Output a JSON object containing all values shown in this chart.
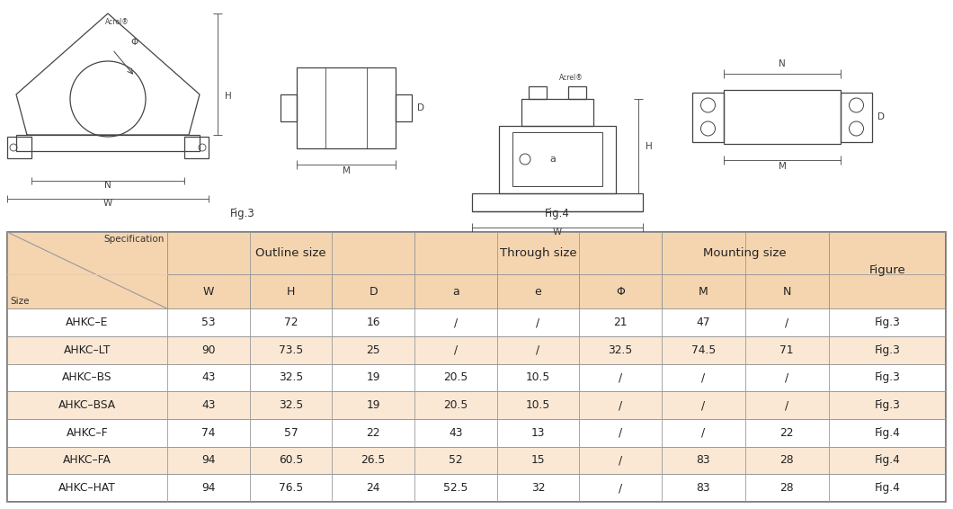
{
  "fig_width": 10.6,
  "fig_height": 5.66,
  "bg_color": "#ffffff",
  "table_header_bg": "#f5d5b0",
  "table_row_odd_bg": "#ffffff",
  "table_row_even_bg": "#fae8d5",
  "table_border_color": "#999999",
  "text_color": "#333333",
  "sub_headers": [
    "W",
    "H",
    "D",
    "a",
    "e",
    "Φ",
    "M",
    "N"
  ],
  "rows": [
    [
      "AHKC–E",
      "53",
      "72",
      "16",
      "/",
      "/",
      "21",
      "47",
      "/",
      "Fig.3"
    ],
    [
      "AHKC–LT",
      "90",
      "73.5",
      "25",
      "/",
      "/",
      "32.5",
      "74.5",
      "71",
      "Fig.3"
    ],
    [
      "AHKC–BS",
      "43",
      "32.5",
      "19",
      "20.5",
      "10.5",
      "/",
      "/",
      "/",
      "Fig.3"
    ],
    [
      "AHKC–BSA",
      "43",
      "32.5",
      "19",
      "20.5",
      "10.5",
      "/",
      "/",
      "/",
      "Fig.3"
    ],
    [
      "AHKC–F",
      "74",
      "57",
      "22",
      "43",
      "13",
      "/",
      "/",
      "22",
      "Fig.4"
    ],
    [
      "AHKC–FA",
      "94",
      "60.5",
      "26.5",
      "52",
      "15",
      "/",
      "83",
      "28",
      "Fig.4"
    ],
    [
      "AHKC–HAT",
      "94",
      "76.5",
      "24",
      "52.5",
      "32",
      "/",
      "83",
      "28",
      "Fig.4"
    ]
  ]
}
